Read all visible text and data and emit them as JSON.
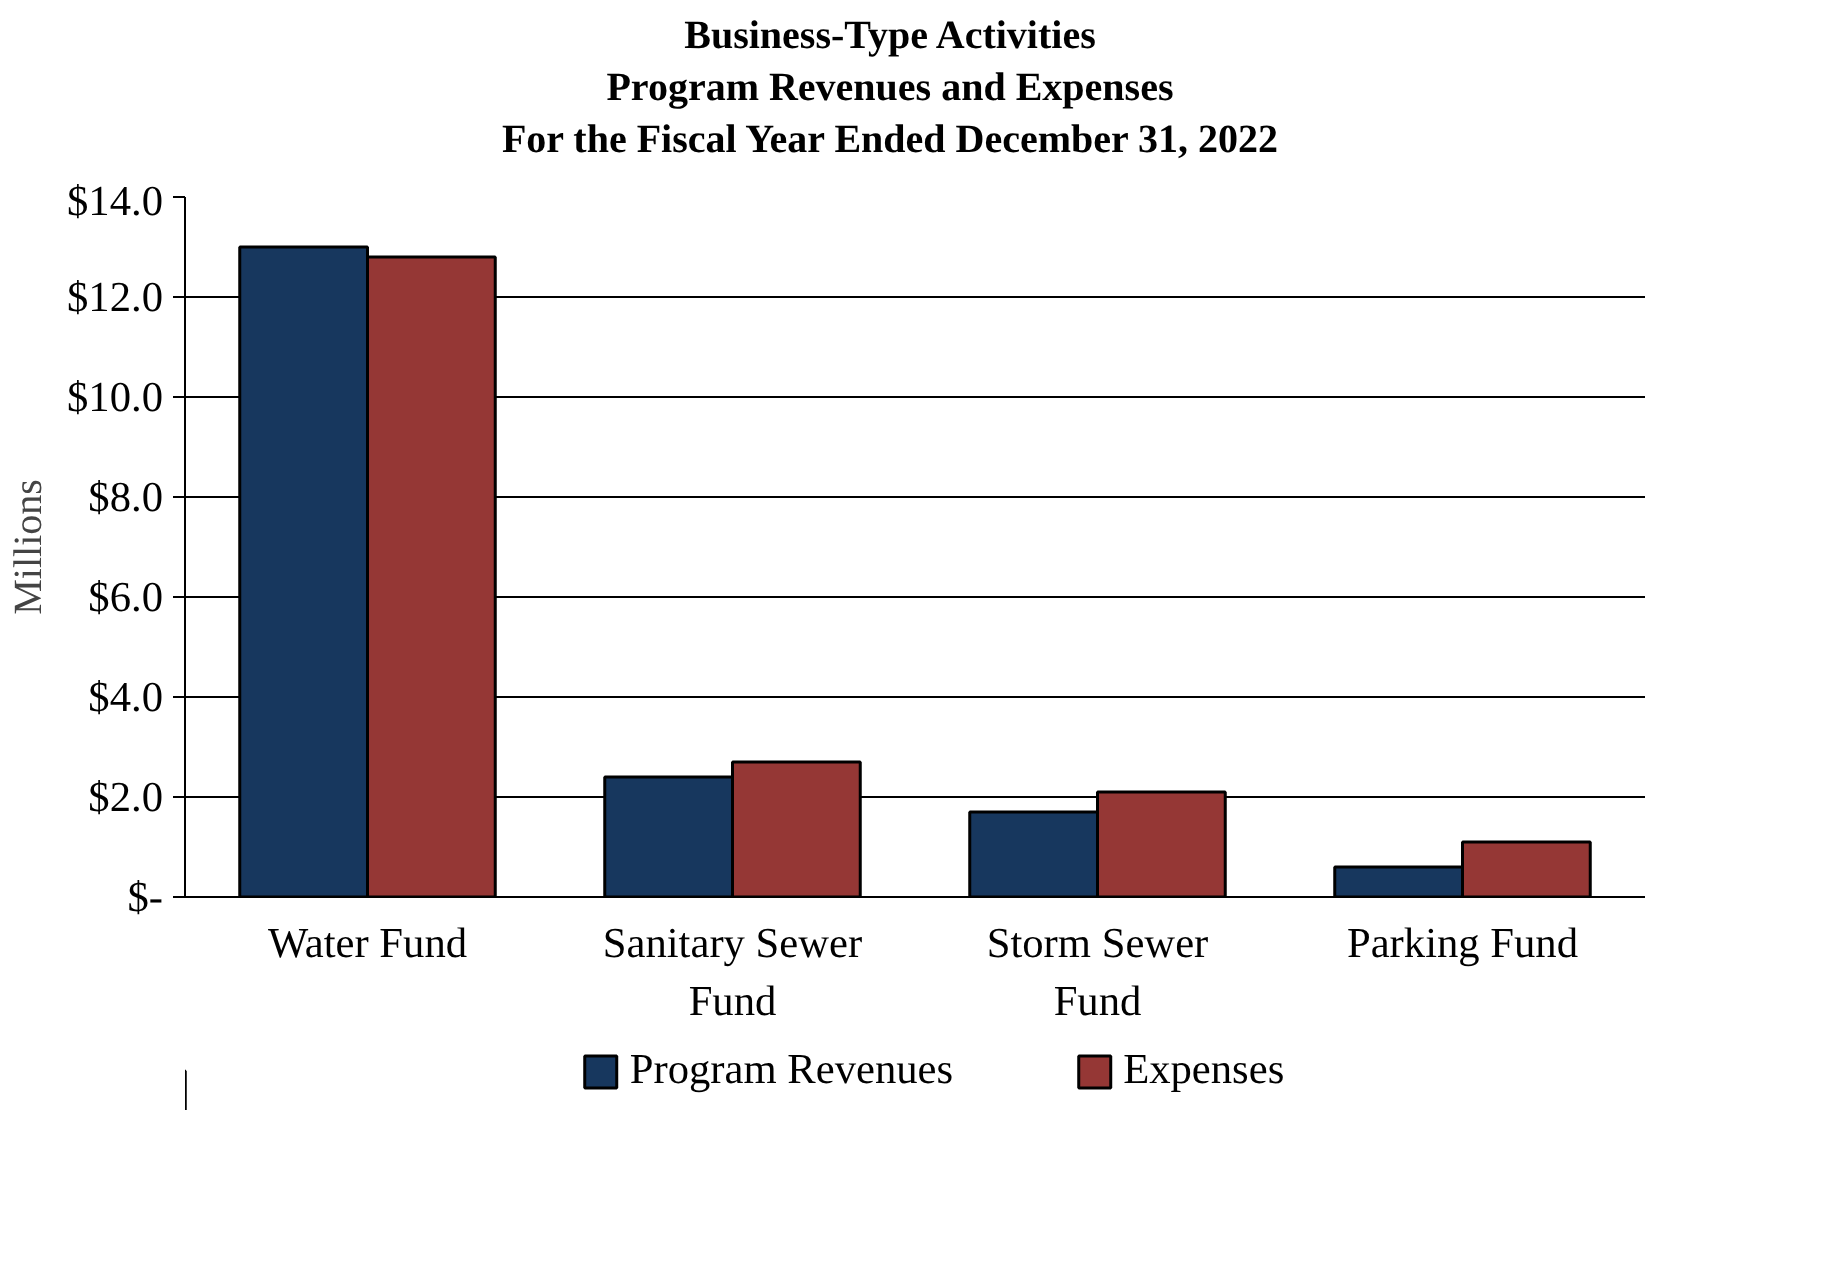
{
  "chart_data": {
    "type": "bar",
    "title": "Business-Type Activities\nProgram Revenues and Expenses\nFor the Fiscal Year Ended December 31, 2022",
    "ylabel": "Millions",
    "categories": [
      "Water Fund",
      "Sanitary Sewer\nFund",
      "Storm Sewer\nFund",
      "Parking Fund"
    ],
    "series": [
      {
        "name": "Program Revenues",
        "color": "#17375e",
        "values": [
          13.0,
          2.4,
          1.7,
          0.6
        ]
      },
      {
        "name": "Expenses",
        "color": "#953735",
        "values": [
          12.8,
          2.7,
          2.1,
          1.1
        ]
      }
    ],
    "ylim": [
      0,
      14
    ],
    "yticks": [
      {
        "value": 0,
        "label": "$-"
      },
      {
        "value": 2,
        "label": "$2.0"
      },
      {
        "value": 4,
        "label": "$4.0"
      },
      {
        "value": 6,
        "label": "$6.0"
      },
      {
        "value": 8,
        "label": "$8.0"
      },
      {
        "value": 10,
        "label": "$10.0"
      },
      {
        "value": 12,
        "label": "$12.0"
      },
      {
        "value": 14,
        "label": "$14.0"
      }
    ],
    "grid": "y",
    "legend": "bottom"
  }
}
